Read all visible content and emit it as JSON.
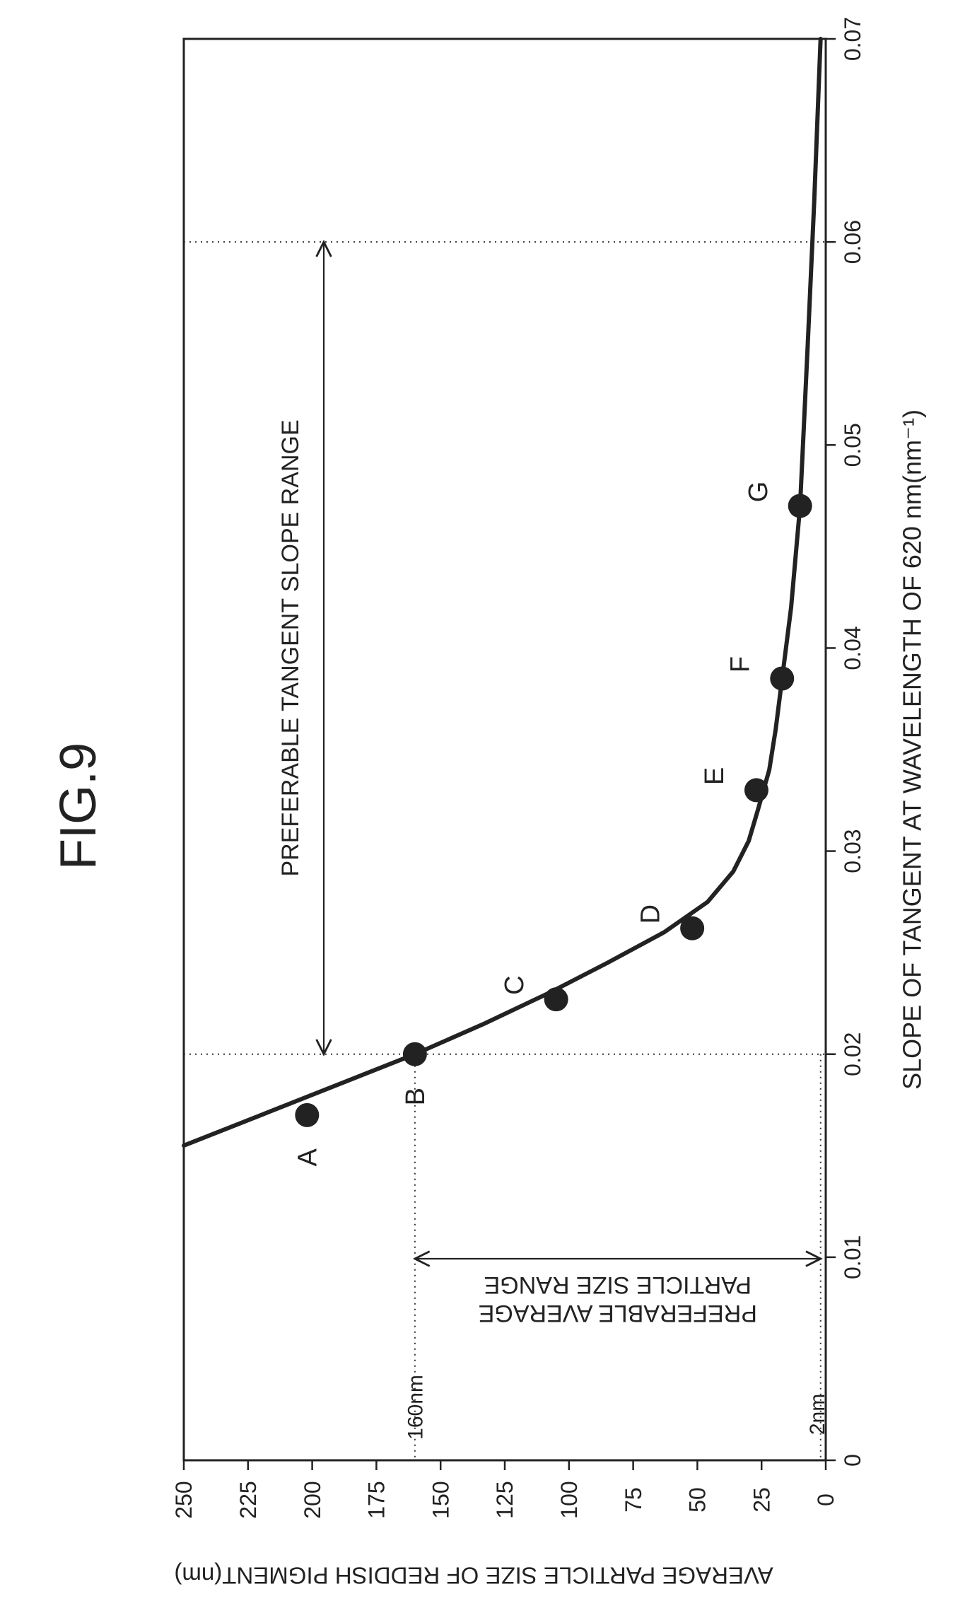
{
  "figure_label": "FIG.9",
  "chart_data": {
    "type": "scatter",
    "xlabel": "SLOPE OF TANGENT AT WAVELENGTH OF 620 nm(nm⁻¹)",
    "ylabel": "AVERAGE PARTICLE SIZE OF REDDISH PIGMENT(nm)",
    "xlim": [
      0,
      0.07
    ],
    "ylim": [
      0,
      250
    ],
    "x_ticks": [
      "0",
      "0.01",
      "0.02",
      "0.03",
      "0.04",
      "0.05",
      "0.06",
      "0.07"
    ],
    "y_ticks": [
      "0",
      "25",
      "50",
      "75",
      "100",
      "125",
      "150",
      "175",
      "200",
      "225",
      "250"
    ],
    "grid": false,
    "points": [
      {
        "label": "A",
        "x": 0.017,
        "y": 202
      },
      {
        "label": "B",
        "x": 0.02,
        "y": 160
      },
      {
        "label": "C",
        "x": 0.0227,
        "y": 105
      },
      {
        "label": "D",
        "x": 0.0262,
        "y": 52
      },
      {
        "label": "E",
        "x": 0.033,
        "y": 27
      },
      {
        "label": "F",
        "x": 0.0385,
        "y": 17
      },
      {
        "label": "G",
        "x": 0.047,
        "y": 10
      }
    ],
    "fit_curve": {
      "x": [
        0.0155,
        0.017,
        0.0185,
        0.02,
        0.0215,
        0.023,
        0.0245,
        0.026,
        0.0275,
        0.029,
        0.0305,
        0.032,
        0.034,
        0.036,
        0.0385,
        0.042,
        0.047,
        0.055,
        0.062,
        0.07
      ],
      "y": [
        250,
        220,
        190,
        160,
        133,
        108,
        85,
        63,
        46,
        36,
        30,
        26.5,
        22,
        19.5,
        17,
        13.5,
        10,
        7,
        4.5,
        2
      ]
    },
    "annotations": {
      "slope_range": {
        "text": "PREFERABLE TANGENT SLOPE RANGE",
        "from": 0.02,
        "to": 0.06
      },
      "size_range": {
        "line1": "PREFERABLE AVERAGE",
        "line2": "PARTICLE SIZE RANGE",
        "from": 2,
        "to": 160
      },
      "upper_size_label": "160nm",
      "lower_size_label": "2nm"
    }
  }
}
